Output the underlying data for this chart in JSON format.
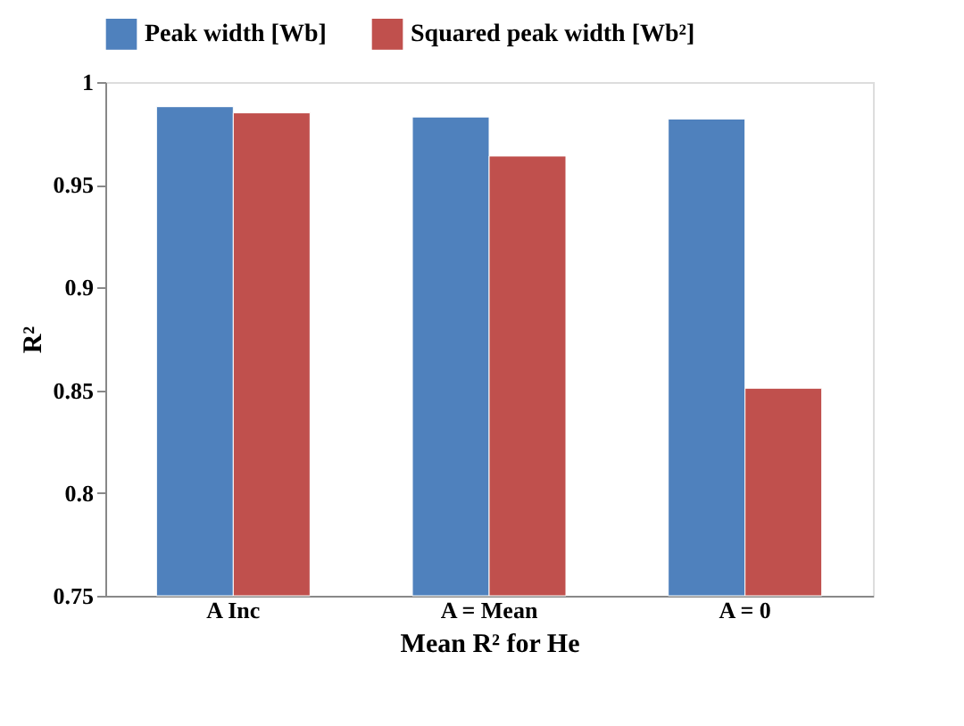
{
  "chart_data": {
    "type": "bar",
    "xlabel": "Mean R² for He",
    "ylabel": "R²",
    "categories": [
      "A Inc",
      "A = Mean",
      "A = 0"
    ],
    "series": [
      {
        "name": "Peak width [Wb]",
        "color": "#4f81bd",
        "values": [
          0.988,
          0.983,
          0.982
        ]
      },
      {
        "name": "Squared peak width [Wb²]",
        "color": "#c0504d",
        "values": [
          0.985,
          0.964,
          0.851
        ]
      }
    ],
    "ylim": [
      0.75,
      1
    ],
    "yticks": [
      0.75,
      0.8,
      0.85,
      0.9,
      0.95,
      1
    ],
    "grid": false,
    "legend": "top"
  }
}
